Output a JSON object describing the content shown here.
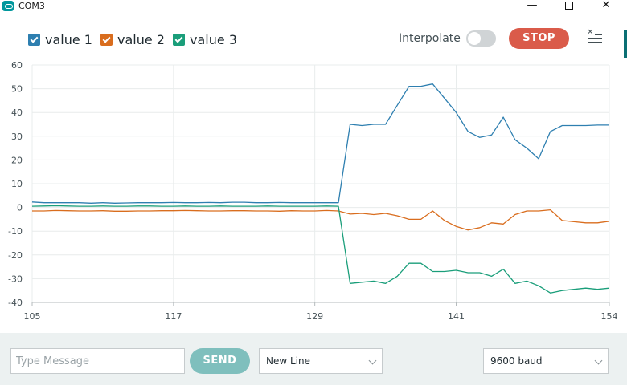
{
  "window": {
    "title": "COM3",
    "minimize": "—",
    "close": "✕"
  },
  "legend": [
    {
      "label": "value 1",
      "color": "#2e7fb0",
      "checked": true
    },
    {
      "label": "value 2",
      "color": "#d96d1e",
      "checked": true
    },
    {
      "label": "value 3",
      "color": "#1a9e7a",
      "checked": true
    }
  ],
  "toolbar": {
    "interpolate_label": "Interpolate",
    "interpolate_on": false,
    "stop_label": "STOP",
    "clear_icon": "clear-lines-icon"
  },
  "chart_data": {
    "type": "line",
    "xlim": [
      105,
      154
    ],
    "ylim": [
      -40,
      60
    ],
    "x_ticks": [
      "105",
      "117",
      "129",
      "141",
      "154"
    ],
    "y_ticks": [
      "60",
      "50",
      "40",
      "30",
      "20",
      "10",
      "0",
      "-10",
      "-20",
      "-30",
      "-40"
    ],
    "grid": true,
    "x": [
      105,
      106,
      107,
      108,
      109,
      110,
      111,
      112,
      113,
      114,
      115,
      116,
      117,
      118,
      119,
      120,
      121,
      122,
      123,
      124,
      125,
      126,
      127,
      128,
      129,
      130,
      131,
      132,
      133,
      134,
      135,
      136,
      137,
      138,
      139,
      140,
      141,
      142,
      143,
      144,
      145,
      146,
      147,
      148,
      149,
      150,
      151,
      152,
      153,
      154
    ],
    "series": [
      {
        "name": "value 1",
        "color": "#2e7fb0",
        "values": [
          2.3,
          2,
          2,
          2,
          2,
          1.8,
          2,
          1.8,
          1.9,
          2,
          2,
          2,
          2.1,
          2,
          2,
          2.1,
          2,
          2.2,
          2.2,
          2,
          2,
          2.1,
          2,
          2,
          2,
          2,
          2,
          35,
          34.5,
          35,
          35,
          43,
          51,
          51,
          52,
          46,
          40,
          32,
          29.5,
          30.5,
          38,
          28.5,
          25,
          20.5,
          32,
          34.5,
          34.5,
          34.5,
          34.7,
          34.7
        ]
      },
      {
        "name": "value 2",
        "color": "#d96d1e",
        "values": [
          -1.5,
          -1.5,
          -1.3,
          -1.4,
          -1.5,
          -1.5,
          -1.4,
          -1.6,
          -1.6,
          -1.5,
          -1.5,
          -1.4,
          -1.4,
          -1.3,
          -1.4,
          -1.5,
          -1.5,
          -1.4,
          -1.4,
          -1.5,
          -1.5,
          -1.6,
          -1.4,
          -1.5,
          -1.5,
          -1.3,
          -1.5,
          -2.8,
          -2.5,
          -3,
          -2.5,
          -3.5,
          -5,
          -5,
          -1.5,
          -5.5,
          -8,
          -9.5,
          -8.5,
          -6.5,
          -7,
          -3,
          -1.5,
          -1.5,
          -1,
          -5.5,
          -6,
          -6.5,
          -6.5,
          -5.8
        ]
      },
      {
        "name": "value 3",
        "color": "#1a9e7a",
        "values": [
          0.5,
          0.6,
          0.7,
          0.6,
          0.5,
          0.5,
          0.6,
          0.5,
          0.5,
          0.6,
          0.6,
          0.5,
          0.5,
          0.6,
          0.5,
          0.5,
          0.6,
          0.5,
          0.5,
          0.5,
          0.6,
          0.5,
          0.5,
          0.5,
          0.5,
          0.6,
          0.5,
          -32,
          -31.5,
          -31,
          -32,
          -29,
          -23.5,
          -23.5,
          -27,
          -27,
          -26.5,
          -27.5,
          -27.5,
          -29,
          -26,
          -32,
          -31,
          -33,
          -36,
          -35,
          -34.5,
          -34,
          -34.5,
          -34
        ]
      }
    ]
  },
  "bottom": {
    "message_placeholder": "Type Message",
    "send_label": "SEND",
    "line_ending": "New Line",
    "baud": "9600 baud"
  }
}
